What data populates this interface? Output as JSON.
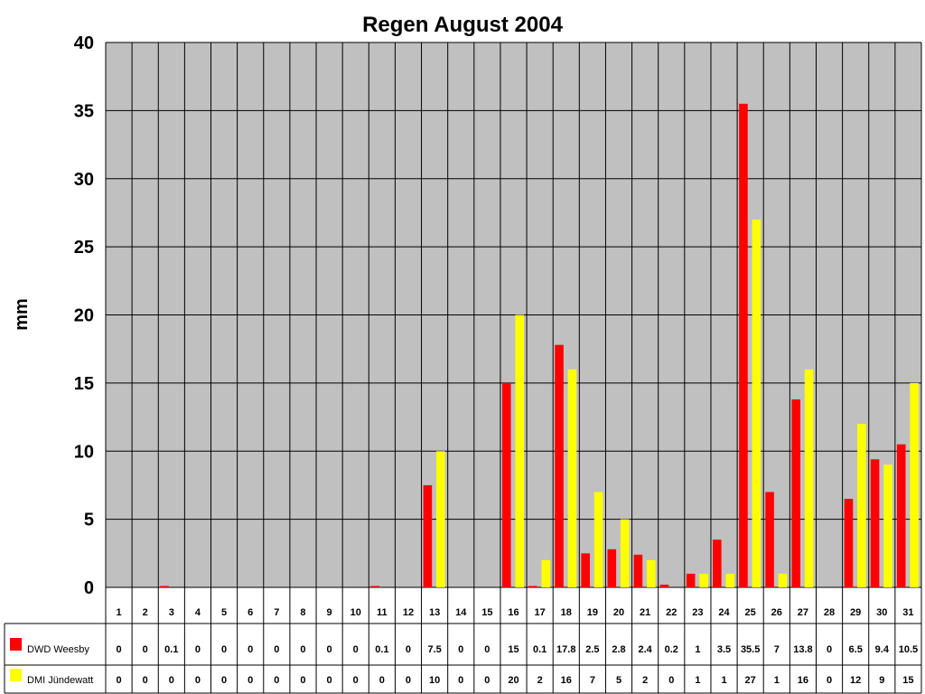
{
  "chart_data": {
    "type": "bar",
    "title": "Regen August 2004",
    "xlabel": "",
    "ylabel": "mm",
    "ylim": [
      0,
      40
    ],
    "yticks": [
      0,
      5,
      10,
      15,
      20,
      25,
      30,
      35,
      40
    ],
    "grid": true,
    "legend": "data-table-left",
    "data_table": true,
    "categories": [
      "1",
      "2",
      "3",
      "4",
      "5",
      "6",
      "7",
      "8",
      "9",
      "10",
      "11",
      "12",
      "13",
      "14",
      "15",
      "16",
      "17",
      "18",
      "19",
      "20",
      "21",
      "22",
      "23",
      "24",
      "25",
      "26",
      "27",
      "28",
      "29",
      "30",
      "31"
    ],
    "series": [
      {
        "name": "DWD Weesby",
        "color": "#FF0000",
        "values": [
          0,
          0,
          0.1,
          0,
          0,
          0,
          0,
          0,
          0,
          0,
          0.1,
          0,
          7.5,
          0,
          0,
          15,
          0.1,
          17.8,
          2.5,
          2.8,
          2.4,
          0.2,
          1,
          3.5,
          35.5,
          7,
          13.8,
          0,
          6.5,
          9.4,
          10.5
        ]
      },
      {
        "name": "DMI Jündewatt",
        "color": "#FFFF00",
        "values": [
          0,
          0,
          0,
          0,
          0,
          0,
          0,
          0,
          0,
          0,
          0,
          0,
          10,
          0,
          0,
          20,
          2,
          16,
          7,
          5,
          2,
          0,
          1,
          1,
          27,
          1,
          16,
          0,
          12,
          9,
          15
        ]
      }
    ]
  },
  "colors": {
    "plot_background": "#C0C0C0",
    "page_background": "#FFFFFF"
  }
}
